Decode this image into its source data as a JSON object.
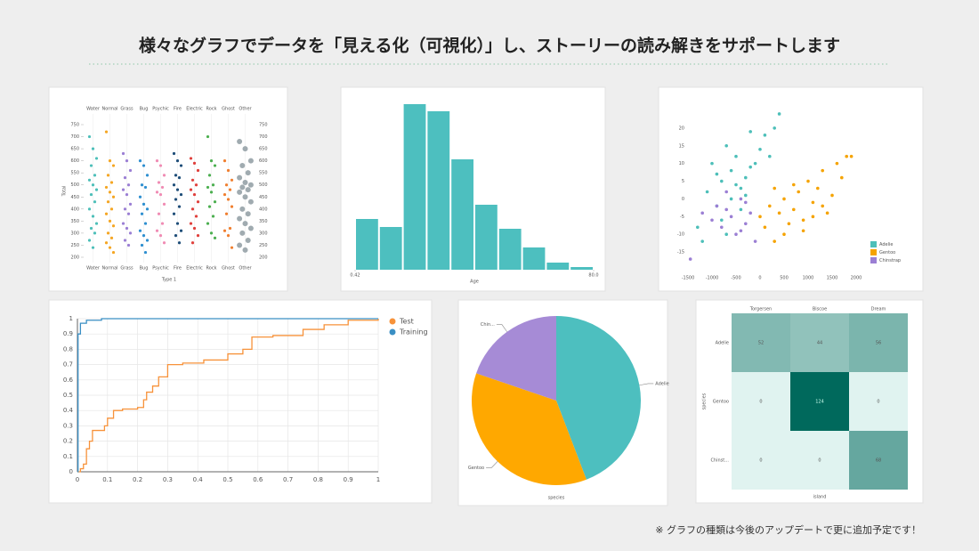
{
  "header": {
    "title": "様々なグラフでデータを「見える化（可視化）」し、ストーリーの読み解きをサポートします"
  },
  "footnote": "※ グラフの種類は今後のアップデートで更に追加予定です！",
  "chart_data": [
    {
      "type": "swarm",
      "x_label": "Type 1",
      "y_label": "Total",
      "categories": [
        "Water",
        "Normal",
        "Grass",
        "Bug",
        "Psychic",
        "Fire",
        "Electric",
        "Rock",
        "Ghost",
        "Other"
      ],
      "colors": [
        "#4dbfb9",
        "#f5a623",
        "#9b7fd4",
        "#2e8fd0",
        "#f08cb4",
        "#1f4e79",
        "#e0403c",
        "#4caf50",
        "#f07f30",
        "#a0abb0"
      ],
      "values": [
        [
          700,
          650,
          610,
          580,
          540,
          520,
          500,
          480,
          460,
          430,
          400,
          370,
          340,
          320,
          300,
          270,
          240
        ],
        [
          720,
          600,
          580,
          540,
          510,
          490,
          470,
          450,
          430,
          400,
          380,
          350,
          330,
          300,
          280,
          260,
          240,
          220
        ],
        [
          630,
          600,
          560,
          530,
          500,
          480,
          460,
          420,
          400,
          380,
          340,
          320,
          300,
          270,
          250
        ],
        [
          600,
          580,
          540,
          500,
          490,
          450,
          420,
          400,
          380,
          340,
          310,
          290,
          270,
          250,
          220
        ],
        [
          600,
          580,
          540,
          510,
          490,
          470,
          460,
          420,
          380,
          340,
          310,
          290,
          260
        ],
        [
          630,
          600,
          580,
          540,
          530,
          500,
          480,
          460,
          440,
          410,
          380,
          340,
          310,
          290,
          260
        ],
        [
          610,
          590,
          560,
          520,
          500,
          480,
          460,
          430,
          400,
          370,
          340,
          320,
          290,
          260
        ],
        [
          700,
          600,
          580,
          540,
          500,
          490,
          470,
          430,
          410,
          370,
          340,
          300,
          280
        ],
        [
          600,
          560,
          520,
          500,
          480,
          460,
          440,
          410,
          380,
          320,
          310,
          290,
          240
        ],
        [
          680,
          650,
          600,
          580,
          550,
          530,
          510,
          500,
          490,
          480,
          470,
          450,
          430,
          400,
          380,
          360,
          340,
          320,
          300,
          270,
          250,
          230
        ]
      ],
      "ylim": [
        200,
        750
      ],
      "yticks": [
        200,
        250,
        300,
        350,
        400,
        450,
        500,
        550,
        600,
        650,
        700,
        750
      ]
    },
    {
      "type": "histogram",
      "x_label": "Age",
      "color": "#4dbfbf",
      "bins": [
        0.42,
        8.378,
        16.336,
        24.294,
        32.252,
        40.21,
        48.168,
        56.126,
        64.084,
        72.042,
        80.0
      ],
      "counts": [
        57,
        48,
        186,
        178,
        124,
        73,
        46,
        25,
        8,
        3
      ],
      "xticks": [
        0.42,
        {
          "value": 80,
          "label": "80.0"
        }
      ]
    },
    {
      "type": "scatter",
      "legend": "lower right",
      "xlim": [
        -1500,
        2000
      ],
      "ylim": [
        -20,
        25
      ],
      "xticks": [
        -1500,
        -1000,
        -500,
        0,
        500,
        1000,
        1500,
        2000
      ],
      "yticks": [
        -15,
        -10,
        -5,
        0,
        5,
        10,
        15,
        20
      ],
      "series": [
        {
          "name": "Adelie",
          "color": "#4dbfb9",
          "x": [
            -1300,
            -1100,
            -1000,
            -900,
            -800,
            -700,
            -600,
            -500,
            -400,
            -300,
            -200,
            -100,
            0,
            100,
            200,
            -1200,
            -800,
            -600,
            -400,
            -200,
            -700,
            -900,
            -300,
            300,
            -500,
            400
          ],
          "y": [
            -8,
            2,
            10,
            -2,
            5,
            15,
            8,
            12,
            -3,
            6,
            19,
            10,
            14,
            18,
            12,
            -12,
            -6,
            0,
            3,
            9,
            -10,
            7,
            1,
            20,
            4,
            24
          ]
        },
        {
          "name": "Gentoo",
          "color": "#f5a300",
          "x": [
            0,
            100,
            200,
            300,
            400,
            500,
            600,
            700,
            800,
            900,
            1000,
            1100,
            1200,
            1300,
            1400,
            1500,
            1600,
            1700,
            1800,
            1900,
            500,
            700,
            900,
            1100,
            300,
            1300
          ],
          "y": [
            -5,
            -8,
            -2,
            -12,
            -4,
            0,
            -7,
            -3,
            2,
            -6,
            5,
            -1,
            3,
            8,
            -4,
            1,
            10,
            6,
            12,
            12,
            -10,
            4,
            -9,
            -5,
            3,
            -2
          ]
        },
        {
          "name": "Chinstrap",
          "color": "#9b7fd4",
          "x": [
            -1200,
            -1000,
            -900,
            -800,
            -700,
            -600,
            -500,
            -400,
            -300,
            -200,
            -100,
            -1450,
            -700,
            -400,
            -300
          ],
          "y": [
            -4,
            -6,
            -2,
            -8,
            -3,
            -5,
            -10,
            0,
            -7,
            -4,
            -12,
            -17,
            2,
            -9,
            -1
          ]
        }
      ]
    },
    {
      "type": "step",
      "legend": "upper right",
      "grid": true,
      "xlim": [
        0,
        1
      ],
      "ylim": [
        0,
        1
      ],
      "xticks": [
        0,
        0.1,
        0.2,
        0.3,
        0.4,
        0.5,
        0.6,
        0.7,
        0.8,
        0.9,
        1
      ],
      "yticks": [
        0,
        0.1,
        0.2,
        0.3,
        0.4,
        0.5,
        0.6,
        0.7,
        0.8,
        0.9,
        1
      ],
      "series": [
        {
          "name": "Test",
          "color": "#f7923a",
          "x": [
            0,
            0.01,
            0.02,
            0.03,
            0.03,
            0.04,
            0.05,
            0.08,
            0.09,
            0.1,
            0.12,
            0.15,
            0.2,
            0.22,
            0.23,
            0.25,
            0.27,
            0.3,
            0.35,
            0.42,
            0.5,
            0.55,
            0.58,
            0.65,
            0.75,
            0.82,
            0.9,
            1
          ],
          "y": [
            0,
            0.02,
            0.05,
            0.1,
            0.15,
            0.2,
            0.27,
            0.27,
            0.3,
            0.35,
            0.4,
            0.41,
            0.42,
            0.47,
            0.52,
            0.56,
            0.62,
            0.7,
            0.71,
            0.73,
            0.77,
            0.8,
            0.88,
            0.89,
            0.93,
            0.96,
            0.99,
            1
          ]
        },
        {
          "name": "Training",
          "color": "#3a8fc4",
          "x": [
            0,
            0.002,
            0.01,
            0.03,
            0.08,
            1
          ],
          "y": [
            0,
            0.9,
            0.97,
            0.99,
            1,
            1
          ]
        }
      ]
    },
    {
      "type": "pie",
      "x_label": "species",
      "categories": [
        "Adelie",
        "Gentoo",
        "Chin..."
      ],
      "values": [
        152,
        124,
        68
      ],
      "colors": [
        "#4dbfbf",
        "#ffa800",
        "#a68bd6"
      ]
    },
    {
      "type": "heatmap",
      "x_label": "island",
      "y_label": "species",
      "columns": [
        "Torgersen",
        "Biscoe",
        "Dream"
      ],
      "rows": [
        "Adelie",
        "Gentoo",
        "Chinst..."
      ],
      "values": [
        [
          52,
          44,
          56
        ],
        [
          0,
          124,
          0
        ],
        [
          0,
          0,
          68
        ]
      ],
      "colors": [
        "#e0f3f0",
        "#00695c"
      ]
    }
  ]
}
